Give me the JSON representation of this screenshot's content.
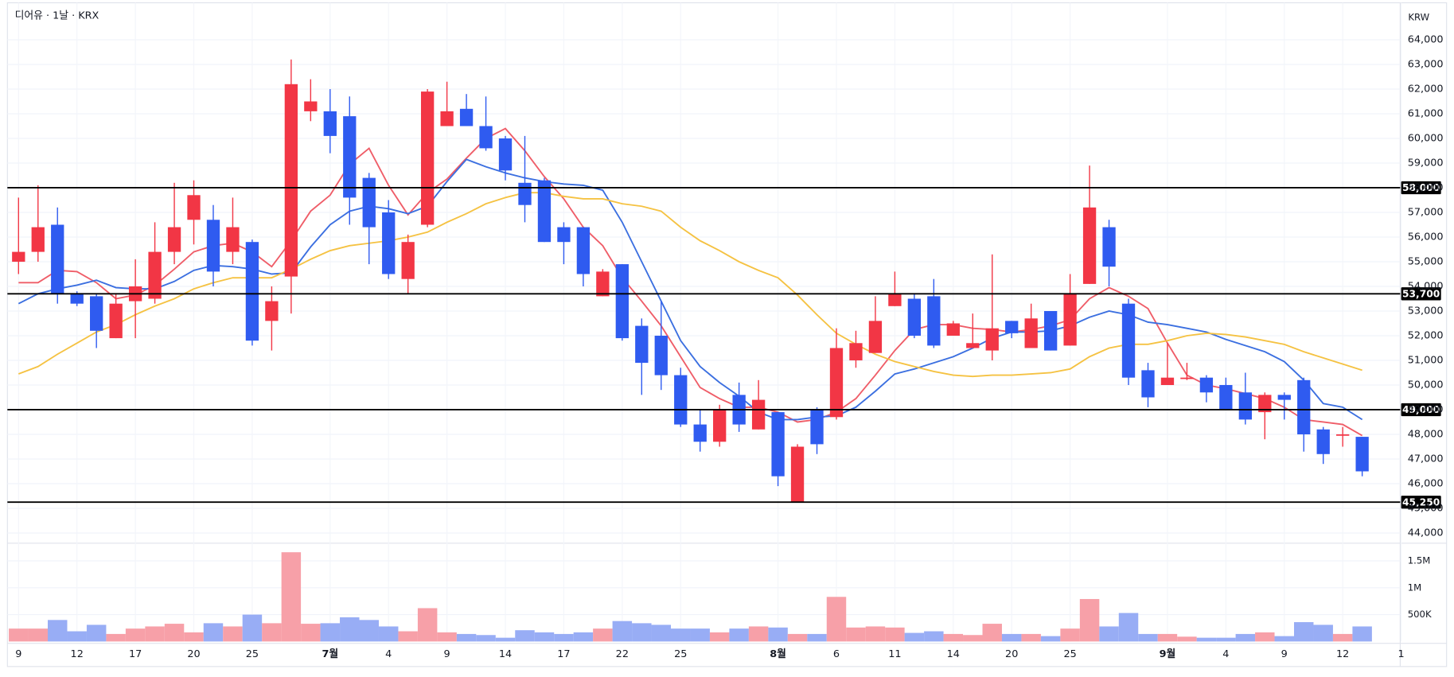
{
  "chart_data": {
    "type": "candlestick",
    "title": "디어유 · 1날 · KRX",
    "currency": "KRW",
    "categories": [
      "9",
      null,
      null,
      "12",
      null,
      null,
      "17",
      null,
      null,
      "20",
      null,
      null,
      "25",
      null,
      null,
      null,
      "7월",
      null,
      null,
      "4",
      null,
      null,
      "9",
      null,
      null,
      "14",
      null,
      null,
      "17",
      null,
      null,
      "22",
      null,
      null,
      "25",
      null,
      null,
      null,
      null,
      "8월",
      null,
      null,
      "6",
      null,
      null,
      "11",
      null,
      null,
      "14",
      null,
      null,
      "20",
      null,
      null,
      "25",
      null,
      null,
      null,
      null,
      "9월",
      null,
      null,
      "4",
      null,
      null,
      "9",
      null,
      null,
      "12",
      null,
      null,
      "1"
    ],
    "open": [
      55000,
      55400,
      56500,
      53700,
      53600,
      51900,
      53400,
      53500,
      55400,
      56700,
      56700,
      55400,
      55800,
      52600,
      54400,
      61100,
      61100,
      60900,
      58400,
      57000,
      54300,
      56500,
      60500,
      61200,
      60500,
      60000,
      58200,
      58300,
      56400,
      56400,
      53600,
      54900,
      52400,
      52000,
      50400,
      48400,
      47700,
      49600,
      48200,
      48900,
      45250,
      49000,
      48700,
      51000,
      51300,
      53200,
      53500,
      53600,
      52000,
      51500,
      51400,
      52600,
      51500,
      53000,
      51600,
      54100,
      56400,
      53300,
      50600,
      50000,
      50300,
      50300,
      50000,
      49700,
      48900,
      49600,
      50200,
      48200,
      47950,
      47900,
      null,
      null
    ],
    "high": [
      57600,
      58100,
      57200,
      53800,
      53700,
      53700,
      55100,
      56600,
      58200,
      58300,
      57300,
      57600,
      55900,
      54000,
      63200,
      62400,
      62000,
      61700,
      58600,
      57500,
      56100,
      62000,
      62300,
      61800,
      61700,
      60100,
      60100,
      58400,
      56600,
      56400,
      54700,
      54900,
      52700,
      53400,
      50700,
      49000,
      49200,
      50100,
      50200,
      48900,
      47600,
      49100,
      52300,
      52200,
      53600,
      54600,
      53700,
      54300,
      52600,
      52900,
      55300,
      52600,
      53300,
      53000,
      54500,
      58900,
      56700,
      53500,
      50900,
      51700,
      50900,
      50400,
      50300,
      50500,
      49700,
      49700,
      50300,
      48300,
      48300,
      47900,
      null,
      null
    ],
    "low": [
      54500,
      55000,
      53300,
      53200,
      51500,
      51900,
      51900,
      53300,
      54900,
      55700,
      54000,
      54900,
      51600,
      51400,
      52900,
      60700,
      59400,
      56500,
      54900,
      54300,
      53700,
      56400,
      60500,
      60500,
      59500,
      58300,
      56600,
      55800,
      54900,
      54000,
      53600,
      51800,
      49600,
      49800,
      48300,
      47300,
      47500,
      48100,
      48200,
      45900,
      45250,
      47200,
      48600,
      50700,
      51300,
      53200,
      51900,
      51500,
      52000,
      51500,
      51000,
      51900,
      51500,
      51400,
      51600,
      54100,
      54000,
      50000,
      49100,
      50000,
      50200,
      49300,
      49000,
      48400,
      47800,
      48600,
      47300,
      46800,
      47500,
      46300,
      null,
      null
    ],
    "close": [
      55400,
      56400,
      53700,
      53300,
      52200,
      53300,
      54000,
      55400,
      56400,
      57700,
      54600,
      56400,
      51800,
      53400,
      62200,
      61500,
      60100,
      57600,
      56400,
      54500,
      55800,
      61900,
      61100,
      60500,
      59600,
      58700,
      57300,
      55800,
      55800,
      54500,
      54600,
      51900,
      50900,
      50400,
      48400,
      47700,
      49000,
      48400,
      49400,
      46300,
      47500,
      47600,
      51500,
      51700,
      52600,
      53700,
      52000,
      51600,
      52500,
      51700,
      52300,
      52100,
      52700,
      51400,
      53700,
      57200,
      54800,
      50300,
      49500,
      50300,
      50300,
      49700,
      49000,
      48600,
      49600,
      49400,
      48000,
      47200,
      48000,
      46500,
      null,
      null
    ],
    "volume": [
      240000,
      240000,
      400000,
      190000,
      310000,
      140000,
      240000,
      280000,
      330000,
      170000,
      340000,
      280000,
      500000,
      340000,
      1660000,
      330000,
      340000,
      450000,
      400000,
      280000,
      190000,
      620000,
      170000,
      140000,
      120000,
      70000,
      210000,
      170000,
      140000,
      170000,
      240000,
      380000,
      340000,
      310000,
      240000,
      240000,
      170000,
      240000,
      280000,
      260000,
      140000,
      140000,
      830000,
      260000,
      280000,
      260000,
      160000,
      190000,
      140000,
      120000,
      330000,
      140000,
      140000,
      100000,
      240000,
      790000,
      280000,
      530000,
      140000,
      140000,
      90000,
      70000,
      70000,
      140000,
      170000,
      100000,
      360000,
      310000,
      140000,
      280000,
      null,
      null
    ],
    "moving_averages": [
      {
        "color": "#ef5d68",
        "values": [
          54150,
          54150,
          54650,
          54600,
          54150,
          53500,
          53650,
          54050,
          54700,
          55400,
          55650,
          55750,
          55400,
          54800,
          55850,
          57050,
          57700,
          58950,
          59600,
          58100,
          56900,
          57800,
          58350,
          59200,
          60000,
          60400,
          59500,
          58450,
          57550,
          56400,
          55650,
          54350,
          53400,
          52400,
          51150,
          49900,
          49450,
          49100,
          49100,
          48900,
          48500,
          48600,
          48900,
          49450,
          50400,
          51400,
          52250,
          52450,
          52450,
          52300,
          52250,
          52150,
          52250,
          52400,
          52650,
          53500,
          53950,
          53600,
          53100,
          51700,
          50400,
          50000,
          49850,
          49650,
          49450,
          49100,
          48600,
          48500,
          48400,
          47950,
          null,
          null
        ]
      },
      {
        "color": "#3b6fe0",
        "values": [
          53300,
          53700,
          53900,
          54050,
          54250,
          53950,
          53900,
          53900,
          54200,
          54650,
          54850,
          54800,
          54700,
          54500,
          54550,
          55600,
          56500,
          57050,
          57250,
          57150,
          56950,
          57250,
          58250,
          59150,
          58850,
          58600,
          58400,
          58250,
          58150,
          58100,
          57900,
          56600,
          55000,
          53400,
          51800,
          50750,
          50100,
          49550,
          48900,
          48600,
          48600,
          48700,
          48750,
          49100,
          49750,
          50450,
          50650,
          50900,
          51150,
          51500,
          51900,
          52150,
          52150,
          52200,
          52400,
          52750,
          53000,
          52850,
          52550,
          52450,
          52300,
          52150,
          51850,
          51600,
          51350,
          50950,
          50200,
          49250,
          49100,
          48600,
          null,
          null
        ]
      },
      {
        "color": "#f5c242",
        "values": [
          50450,
          50750,
          51250,
          51700,
          52150,
          52450,
          52850,
          53200,
          53500,
          53900,
          54150,
          54350,
          54350,
          54350,
          54700,
          55100,
          55450,
          55650,
          55750,
          55850,
          56000,
          56200,
          56600,
          56950,
          57350,
          57600,
          57800,
          57800,
          57650,
          57550,
          57550,
          57350,
          57250,
          57050,
          56400,
          55850,
          55450,
          55000,
          54650,
          54350,
          53650,
          52850,
          52100,
          51650,
          51250,
          50950,
          50750,
          50550,
          50400,
          50350,
          50400,
          50400,
          50450,
          50500,
          50650,
          51150,
          51500,
          51650,
          51650,
          51800,
          52000,
          52100,
          52050,
          51950,
          51800,
          51650,
          51350,
          51100,
          50850,
          50600,
          null,
          null
        ]
      }
    ],
    "levels": [
      {
        "value": 58000,
        "label": "58,000"
      },
      {
        "value": 53700,
        "label": "53,700"
      },
      {
        "value": 49000,
        "label": "49,000"
      },
      {
        "value": 45250,
        "label": "45,250"
      }
    ],
    "up_color": "#f23645",
    "down_color": "#2f5bf0",
    "volume_up_color": "#f7a0a8",
    "volume_down_color": "#98adf5",
    "level_color": "#000000",
    "ylim": [
      43600,
      65500
    ],
    "yticks": [
      {
        "value": 44000,
        "label": "44,000"
      },
      {
        "value": 45000,
        "label": "45,000"
      },
      {
        "value": 46000,
        "label": "46,000"
      },
      {
        "value": 47000,
        "label": "47,000"
      },
      {
        "value": 48000,
        "label": "48,000"
      },
      {
        "value": 49000,
        "label": "49,000"
      },
      {
        "value": 50000,
        "label": "50,000"
      },
      {
        "value": 51000,
        "label": "51,000"
      },
      {
        "value": 52000,
        "label": "52,000"
      },
      {
        "value": 53000,
        "label": "53,000"
      },
      {
        "value": 54000,
        "label": "54,000"
      },
      {
        "value": 55000,
        "label": "55,000"
      },
      {
        "value": 56000,
        "label": "56,000"
      },
      {
        "value": 57000,
        "label": "57,000"
      },
      {
        "value": 58000,
        "label": "58,000"
      },
      {
        "value": 59000,
        "label": "59,000"
      },
      {
        "value": 60000,
        "label": "60,000"
      },
      {
        "value": 61000,
        "label": "61,000"
      },
      {
        "value": 62000,
        "label": "62,000"
      },
      {
        "value": 63000,
        "label": "63,000"
      },
      {
        "value": 64000,
        "label": "64,000"
      }
    ],
    "volume_ylim": [
      0,
      1800000
    ],
    "volume_yticks": [
      {
        "value": 500000,
        "label": "500K"
      },
      {
        "value": 1000000,
        "label": "1M"
      },
      {
        "value": 1500000,
        "label": "1.5M"
      }
    ],
    "grid": true
  }
}
